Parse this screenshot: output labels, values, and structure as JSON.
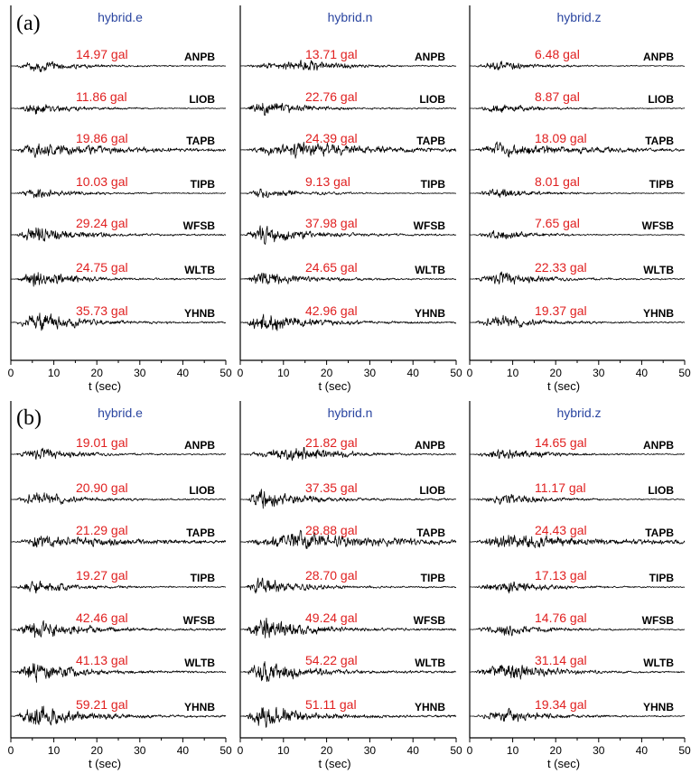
{
  "chart_data": {
    "type": "line",
    "panels": [
      {
        "label": "(a)",
        "columns": [
          {
            "title": "hybrid.e",
            "pga": [
              "14.97 gal",
              "11.86 gal",
              "19.86 gal",
              "10.03 gal",
              "29.24 gal",
              "24.75 gal",
              "35.73 gal"
            ]
          },
          {
            "title": "hybrid.n",
            "pga": [
              "13.71 gal",
              "22.76 gal",
              "24.39 gal",
              "9.13 gal",
              "37.98 gal",
              "24.65 gal",
              "42.96 gal"
            ]
          },
          {
            "title": "hybrid.z",
            "pga": [
              "6.48 gal",
              "8.87 gal",
              "18.09 gal",
              "8.01 gal",
              "7.65 gal",
              "22.33 gal",
              "19.37 gal"
            ]
          }
        ]
      },
      {
        "label": "(b)",
        "columns": [
          {
            "title": "hybrid.e",
            "pga": [
              "19.01 gal",
              "20.90 gal",
              "21.29 gal",
              "19.27 gal",
              "42.46 gal",
              "41.13 gal",
              "59.21 gal"
            ]
          },
          {
            "title": "hybrid.n",
            "pga": [
              "21.82 gal",
              "37.35 gal",
              "28.88 gal",
              "28.70 gal",
              "49.24 gal",
              "54.22 gal",
              "51.11 gal"
            ]
          },
          {
            "title": "hybrid.z",
            "pga": [
              "14.65 gal",
              "11.17 gal",
              "24.43 gal",
              "17.13 gal",
              "14.76 gal",
              "31.14 gal",
              "19.34 gal"
            ]
          }
        ]
      }
    ],
    "stations": [
      "ANPB",
      "LIOB",
      "TAPB",
      "TIPB",
      "WFSB",
      "WLTB",
      "YHNB"
    ],
    "xlabel": "t (sec)",
    "xlim": [
      0,
      50
    ],
    "xticks": [
      0,
      10,
      20,
      30,
      40,
      50
    ],
    "grid": false,
    "colors": {
      "trace": "#000000",
      "pga_text": "#e02020",
      "title_text": "#2a45a0",
      "axis": "#000000"
    }
  }
}
